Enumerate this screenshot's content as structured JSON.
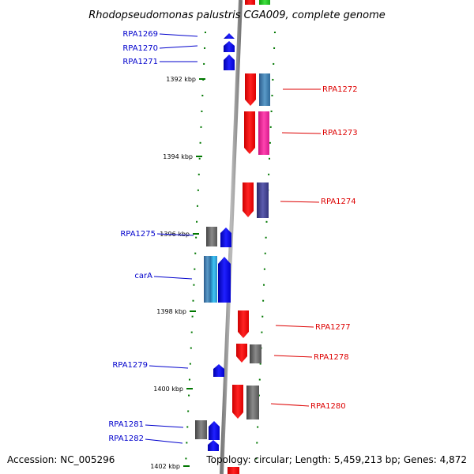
{
  "title": "Rhodopseudomonas palustris CGA009, complete genome",
  "footer": {
    "accession": "Accession: NC_005296",
    "topology": "Topology: circular; Length: 5,459,213 bp; Genes: 4,872"
  },
  "colors": {
    "forward_label": "#0000cc",
    "reverse_label": "#dd0000",
    "forward_gene": "#0000ff",
    "reverse_gene": "#ff0000",
    "tick": "#007700",
    "backbone": "#888888"
  },
  "scale_ticks": [
    {
      "label": "1392 kbp"
    },
    {
      "label": "1394 kbp"
    },
    {
      "label": "1396 kbp"
    },
    {
      "label": "1398 kbp"
    },
    {
      "label": "1400 kbp"
    },
    {
      "label": "1402 kbp"
    }
  ],
  "forward_genes": [
    {
      "name": "RPA1269"
    },
    {
      "name": "RPA1270"
    },
    {
      "name": "RPA1271"
    },
    {
      "name": "RPA1275"
    },
    {
      "name": "carA"
    },
    {
      "name": "RPA1279"
    },
    {
      "name": "RPA1281"
    },
    {
      "name": "RPA1282"
    }
  ],
  "reverse_genes": [
    {
      "name": "RPA1272"
    },
    {
      "name": "RPA1273"
    },
    {
      "name": "RPA1274"
    },
    {
      "name": "RPA1277"
    },
    {
      "name": "RPA1278"
    },
    {
      "name": "RPA1280"
    }
  ]
}
